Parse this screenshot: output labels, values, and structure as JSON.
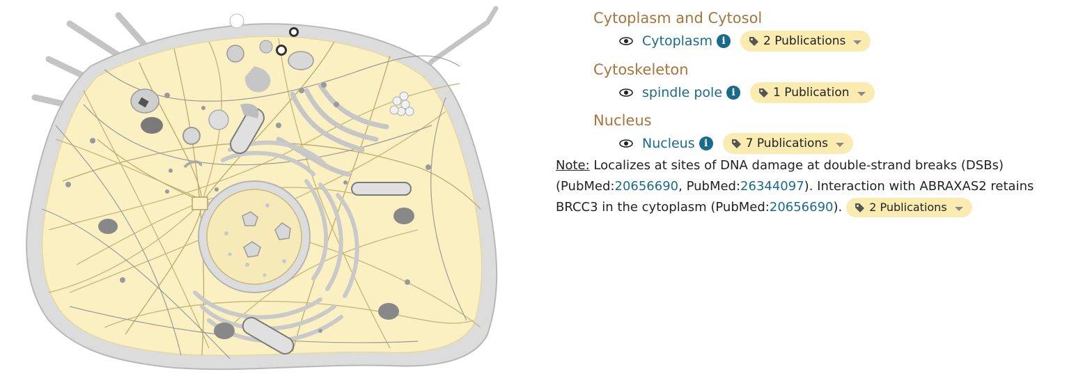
{
  "categories": {
    "cytoplasm_cytosol": {
      "title": "Cytoplasm and Cytosol",
      "location": "Cytoplasm",
      "publications": "2 Publications"
    },
    "cytoskeleton": {
      "title": "Cytoskeleton",
      "location": "spindle pole",
      "publications": "1 Publication"
    },
    "nucleus": {
      "title": "Nucleus",
      "location": "Nucleus",
      "publications": "7 Publications"
    }
  },
  "note": {
    "label": "Note:",
    "text1": " Localizes at sites of DNA damage at double-strand breaks (DSBs) (PubMed:",
    "pmid1": "20656690",
    "text2": ", PubMed:",
    "pmid2": "26344097",
    "text3": "). Interaction with ABRAXAS2 retains BRCC3 in the cytoplasm (PubMed:",
    "pmid3": "20656690",
    "text4": ").",
    "publications": "2 Publications"
  },
  "colors": {
    "category": "#a8743b",
    "link": "#1a6a8c",
    "badge": "#faecb0",
    "cytoplasm_fill": "#fbf0c2",
    "membrane": "#dddddd"
  }
}
